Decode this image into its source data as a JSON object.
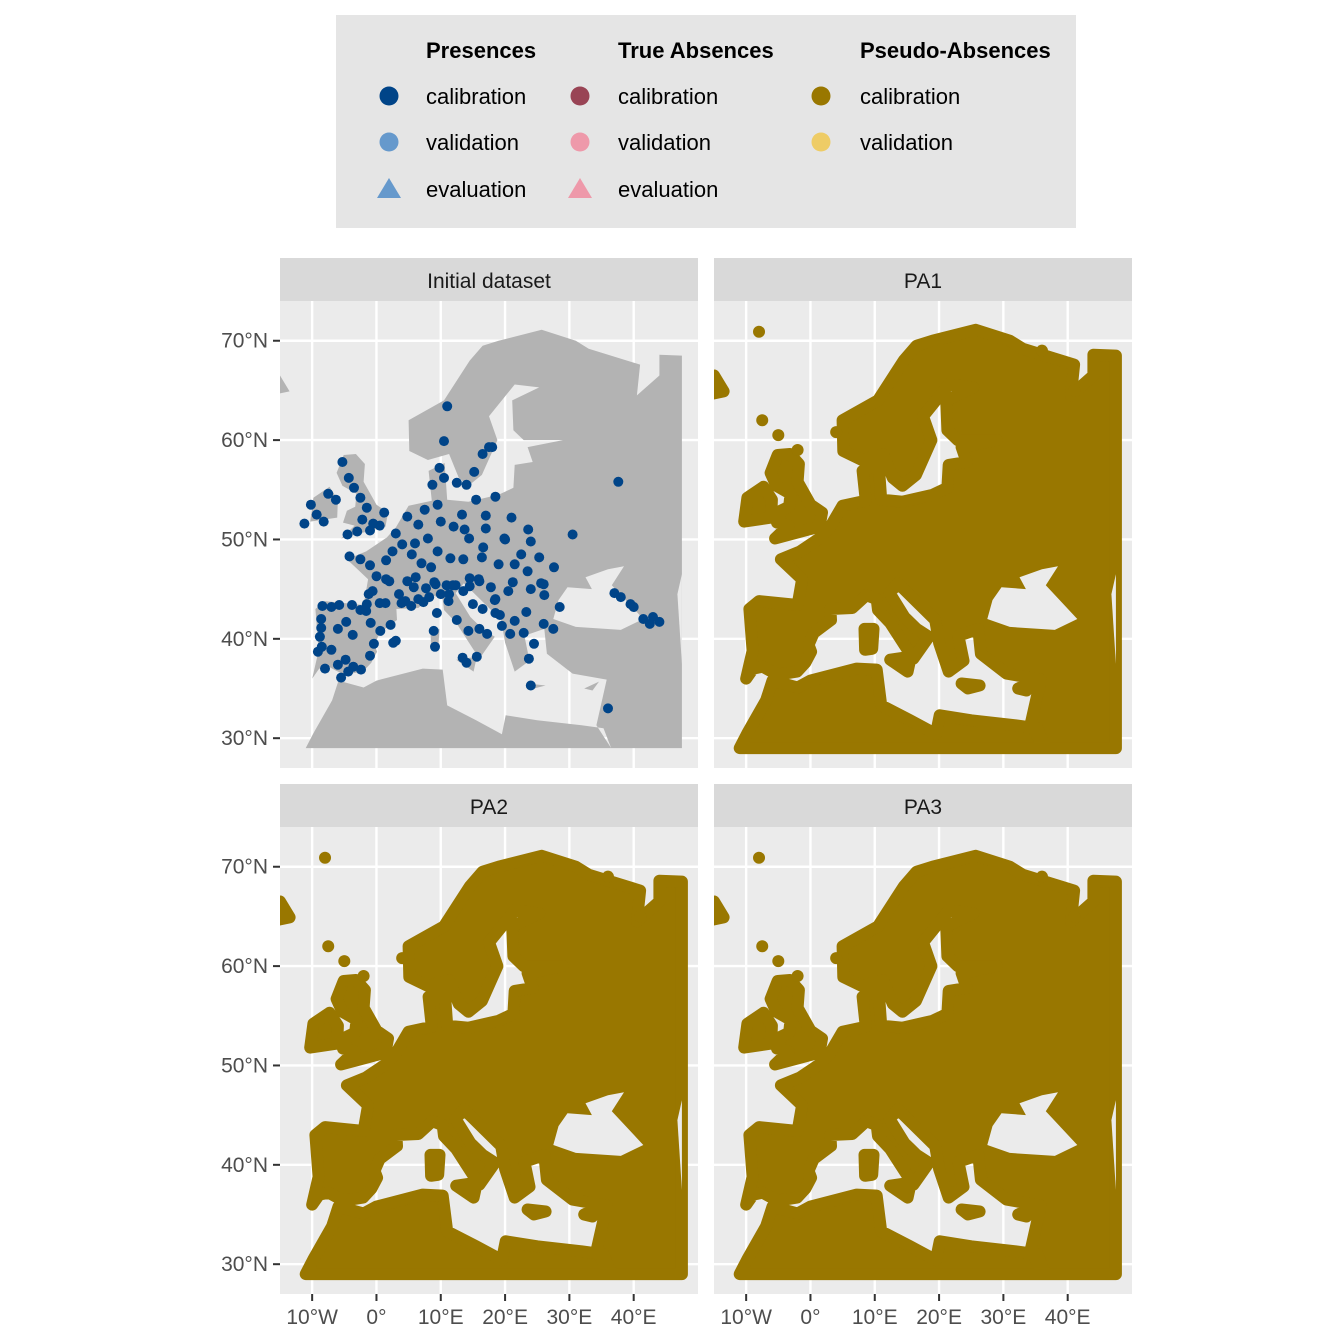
{
  "legend": {
    "groups": [
      {
        "title": "Presences",
        "items": [
          {
            "label": "calibration",
            "color": "#004488",
            "shape": "circle"
          },
          {
            "label": "validation",
            "color": "#6699cc",
            "shape": "circle"
          },
          {
            "label": "evaluation",
            "color": "#6699cc",
            "shape": "triangle"
          }
        ]
      },
      {
        "title": "True Absences",
        "items": [
          {
            "label": "calibration",
            "color": "#994455",
            "shape": "circle"
          },
          {
            "label": "validation",
            "color": "#ee99aa",
            "shape": "circle"
          },
          {
            "label": "evaluation",
            "color": "#ee99aa",
            "shape": "triangle"
          }
        ]
      },
      {
        "title": "Pseudo-Absences",
        "items": [
          {
            "label": "calibration",
            "color": "#997700",
            "shape": "circle"
          },
          {
            "label": "validation",
            "color": "#eecc66",
            "shape": "circle"
          }
        ]
      }
    ]
  },
  "chart_data": {
    "type": "scatter",
    "facets": [
      "Initial dataset",
      "PA1",
      "PA2",
      "PA3"
    ],
    "x_ticks": [
      -10,
      0,
      10,
      20,
      30,
      40
    ],
    "x_tick_labels": [
      "10°W",
      "0°",
      "10°E",
      "20°E",
      "30°E",
      "40°E"
    ],
    "y_ticks": [
      30,
      40,
      50,
      60,
      70
    ],
    "y_tick_labels": [
      "30°N",
      "40°N",
      "50°N",
      "60°N",
      "70°N"
    ],
    "xlim": [
      -15,
      50
    ],
    "ylim": [
      27,
      74
    ],
    "colors": {
      "panel_bg": "#ebebeb",
      "grid": "#ffffff",
      "land": "#b3b3b3",
      "strip": "#d9d9d9",
      "presence_calibration": "#004488",
      "pseudo_absence_calibration": "#997700"
    },
    "presence_points": [
      [
        -11.2,
        51.6
      ],
      [
        -10.2,
        53.5
      ],
      [
        -9.3,
        52.5
      ],
      [
        -8.2,
        51.8
      ],
      [
        -7.5,
        54.6
      ],
      [
        -6.3,
        54.0
      ],
      [
        -5.3,
        57.8
      ],
      [
        -4.3,
        56.2
      ],
      [
        -3.5,
        55.2
      ],
      [
        -2.5,
        54.2
      ],
      [
        -1.5,
        53.2
      ],
      [
        -2.2,
        52.0
      ],
      [
        -0.5,
        51.6
      ],
      [
        1.2,
        52.7
      ],
      [
        -4.5,
        50.5
      ],
      [
        -3.0,
        50.8
      ],
      [
        -1.0,
        50.9
      ],
      [
        0.5,
        51.4
      ],
      [
        -4.2,
        48.3
      ],
      [
        -2.5,
        48.0
      ],
      [
        -1.0,
        47.4
      ],
      [
        1.5,
        47.9
      ],
      [
        0.0,
        46.3
      ],
      [
        -1.2,
        44.5
      ],
      [
        0.5,
        43.6
      ],
      [
        2.0,
        45.8
      ],
      [
        3.5,
        44.5
      ],
      [
        4.5,
        43.8
      ],
      [
        5.8,
        45.2
      ],
      [
        6.5,
        44.0
      ],
      [
        2.5,
        48.8
      ],
      [
        4.0,
        49.5
      ],
      [
        5.5,
        48.5
      ],
      [
        7.0,
        47.6
      ],
      [
        8.5,
        47.2
      ],
      [
        9.5,
        48.8
      ],
      [
        8.0,
        50.1
      ],
      [
        6.5,
        51.5
      ],
      [
        7.5,
        53.0
      ],
      [
        9.5,
        53.5
      ],
      [
        8.7,
        55.5
      ],
      [
        10.5,
        56.2
      ],
      [
        9.8,
        57.2
      ],
      [
        10.5,
        59.9
      ],
      [
        11.0,
        63.4
      ],
      [
        12.5,
        55.7
      ],
      [
        14.0,
        55.5
      ],
      [
        15.2,
        56.8
      ],
      [
        16.5,
        58.6
      ],
      [
        18.0,
        59.3
      ],
      [
        17.5,
        59.3
      ],
      [
        13.3,
        52.5
      ],
      [
        15.5,
        54.0
      ],
      [
        18.5,
        54.3
      ],
      [
        21.0,
        52.2
      ],
      [
        20.0,
        50.0
      ],
      [
        17.0,
        51.1
      ],
      [
        14.4,
        50.1
      ],
      [
        16.6,
        49.2
      ],
      [
        13.5,
        48.0
      ],
      [
        16.4,
        48.2
      ],
      [
        19.0,
        47.5
      ],
      [
        21.5,
        47.5
      ],
      [
        23.5,
        46.8
      ],
      [
        22.5,
        48.5
      ],
      [
        24.0,
        49.8
      ],
      [
        23.6,
        51.0
      ],
      [
        25.3,
        48.2
      ],
      [
        26.0,
        45.5
      ],
      [
        24.0,
        45.0
      ],
      [
        20.5,
        44.8
      ],
      [
        18.5,
        44.0
      ],
      [
        16.0,
        45.8
      ],
      [
        14.5,
        45.3
      ],
      [
        13.5,
        44.8
      ],
      [
        15.0,
        43.5
      ],
      [
        16.5,
        43.0
      ],
      [
        18.5,
        42.6
      ],
      [
        19.5,
        41.3
      ],
      [
        20.8,
        40.5
      ],
      [
        21.5,
        41.8
      ],
      [
        22.9,
        40.6
      ],
      [
        23.7,
        38.0
      ],
      [
        24.5,
        39.5
      ],
      [
        24.0,
        35.3
      ],
      [
        26.0,
        41.5
      ],
      [
        27.5,
        41.0
      ],
      [
        28.5,
        43.2
      ],
      [
        11.2,
        43.8
      ],
      [
        12.5,
        41.9
      ],
      [
        14.3,
        40.8
      ],
      [
        16.0,
        41.0
      ],
      [
        17.2,
        40.5
      ],
      [
        15.6,
        38.2
      ],
      [
        14.0,
        37.6
      ],
      [
        13.4,
        38.1
      ],
      [
        9.1,
        39.2
      ],
      [
        8.9,
        40.8
      ],
      [
        9.4,
        42.6
      ],
      [
        8.2,
        44.2
      ],
      [
        10.0,
        44.5
      ],
      [
        11.3,
        44.5
      ],
      [
        12.3,
        45.4
      ],
      [
        7.7,
        45.1
      ],
      [
        9.2,
        45.5
      ],
      [
        -8.6,
        42.0
      ],
      [
        -8.4,
        43.3
      ],
      [
        -7.0,
        43.2
      ],
      [
        -5.8,
        43.4
      ],
      [
        -3.8,
        43.4
      ],
      [
        -2.5,
        42.9
      ],
      [
        -1.6,
        42.8
      ],
      [
        -0.9,
        41.6
      ],
      [
        2.2,
        41.4
      ],
      [
        0.6,
        40.8
      ],
      [
        -0.4,
        39.5
      ],
      [
        -1.0,
        38.3
      ],
      [
        -3.7,
        40.4
      ],
      [
        -4.7,
        41.7
      ],
      [
        -6.0,
        41.0
      ],
      [
        -8.6,
        41.1
      ],
      [
        -9.1,
        38.7
      ],
      [
        -8.0,
        37.0
      ],
      [
        -6.0,
        37.4
      ],
      [
        -4.4,
        36.7
      ],
      [
        -3.6,
        37.2
      ],
      [
        -5.5,
        36.1
      ],
      [
        -2.4,
        36.9
      ],
      [
        -4.8,
        37.9
      ],
      [
        -7.0,
        38.9
      ],
      [
        -8.8,
        40.2
      ],
      [
        -8.5,
        39.2
      ],
      [
        2.6,
        39.6
      ],
      [
        3.0,
        39.8
      ],
      [
        37.6,
        55.8
      ],
      [
        30.5,
        50.5
      ],
      [
        36.0,
        33.0
      ],
      [
        37.0,
        44.6
      ],
      [
        38.0,
        44.2
      ],
      [
        39.5,
        43.5
      ],
      [
        40.0,
        43.2
      ],
      [
        41.5,
        42.0
      ],
      [
        43.0,
        42.2
      ],
      [
        44.0,
        41.7
      ],
      [
        42.5,
        41.5
      ],
      [
        1.5,
        46.0
      ],
      [
        3.0,
        50.6
      ],
      [
        4.8,
        52.3
      ],
      [
        6.0,
        49.6
      ],
      [
        11.5,
        48.1
      ],
      [
        12.0,
        51.3
      ],
      [
        10.0,
        51.8
      ],
      [
        13.7,
        51.0
      ],
      [
        17.0,
        52.4
      ],
      [
        19.9,
        50.1
      ],
      [
        21.2,
        45.7
      ],
      [
        25.6,
        45.6
      ],
      [
        27.6,
        47.2
      ],
      [
        26.1,
        44.4
      ],
      [
        23.3,
        42.7
      ],
      [
        19.2,
        42.4
      ],
      [
        18.4,
        43.9
      ],
      [
        17.8,
        45.2
      ],
      [
        15.9,
        46.0
      ],
      [
        14.5,
        46.1
      ],
      [
        11.9,
        45.4
      ],
      [
        10.9,
        45.4
      ],
      [
        9.0,
        45.7
      ],
      [
        6.1,
        46.2
      ],
      [
        4.8,
        45.8
      ],
      [
        -0.6,
        44.8
      ],
      [
        -1.5,
        43.5
      ],
      [
        1.4,
        43.6
      ],
      [
        3.9,
        43.6
      ],
      [
        5.4,
        43.3
      ],
      [
        7.3,
        43.7
      ]
    ]
  }
}
